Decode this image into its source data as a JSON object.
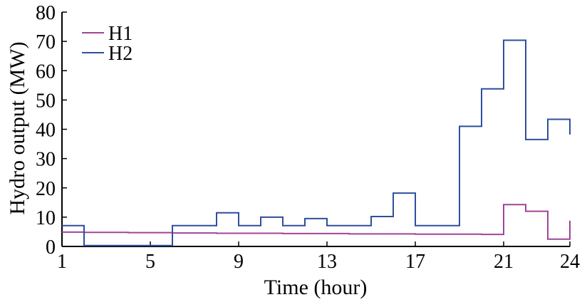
{
  "chart_data": {
    "type": "line",
    "step": true,
    "xlabel": "Time (hour)",
    "ylabel": "Hydro output (MW)",
    "xlim": [
      1,
      24
    ],
    "ylim": [
      0,
      80
    ],
    "xticks": [
      1,
      5,
      9,
      13,
      17,
      21,
      24
    ],
    "yticks": [
      0,
      10,
      20,
      30,
      40,
      50,
      60,
      70,
      80
    ],
    "grid": false,
    "legend": "top-left",
    "x": [
      1,
      2,
      3,
      4,
      5,
      6,
      7,
      8,
      9,
      10,
      11,
      12,
      13,
      14,
      15,
      16,
      17,
      18,
      19,
      20,
      21,
      22,
      23,
      24
    ],
    "series": [
      {
        "name": "H1",
        "color": "#a0449a",
        "values": [
          4.9,
          4.8,
          4.8,
          4.7,
          4.7,
          4.6,
          4.6,
          4.5,
          4.5,
          4.5,
          4.4,
          4.4,
          4.4,
          4.3,
          4.3,
          4.3,
          4.2,
          4.2,
          4.2,
          4.1,
          14.3,
          12.0,
          2.5,
          8.8
        ]
      },
      {
        "name": "H2",
        "color": "#2e4f9c",
        "values": [
          7.1,
          0.3,
          0.3,
          0.3,
          0.3,
          7.1,
          7.1,
          11.5,
          7.1,
          10.0,
          7.1,
          9.5,
          7.1,
          7.1,
          10.2,
          18.2,
          7.1,
          7.1,
          41.0,
          53.8,
          70.4,
          36.5,
          43.4,
          38.2
        ]
      }
    ]
  }
}
